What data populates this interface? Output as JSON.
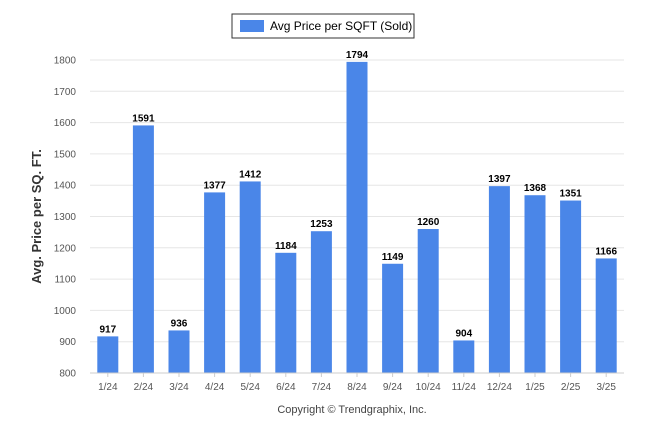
{
  "chart_data": {
    "type": "bar",
    "title": "",
    "xlabel": "",
    "ylabel": "Avg. Price per SQ. FT.",
    "categories": [
      "1/24",
      "2/24",
      "3/24",
      "4/24",
      "5/24",
      "6/24",
      "7/24",
      "8/24",
      "9/24",
      "10/24",
      "11/24",
      "12/24",
      "1/25",
      "2/25",
      "3/25"
    ],
    "series": [
      {
        "name": "Avg Price per SQFT (Sold)",
        "values": [
          917,
          1591,
          936,
          1377,
          1412,
          1184,
          1253,
          1794,
          1149,
          1260,
          904,
          1397,
          1368,
          1351,
          1166
        ]
      }
    ],
    "ylim": [
      800,
      1800
    ],
    "yticks": [
      800,
      900,
      1000,
      1100,
      1200,
      1300,
      1400,
      1500,
      1600,
      1700,
      1800
    ],
    "grid": true,
    "legend_position": "top-center",
    "bar_color": "#4a86e8"
  },
  "footer": "Copyright © Trendgraphix, Inc."
}
